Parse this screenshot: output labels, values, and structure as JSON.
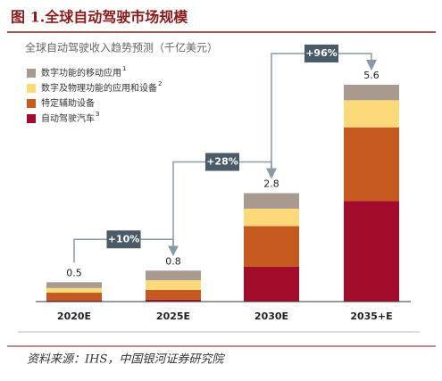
{
  "chart_data": {
    "type": "stacked_bar",
    "title": "图 1.全球自动驾驶市场规模",
    "subtitle": "全球自动驾驶收入趋势预测（千亿美元）",
    "categories": [
      "2020E",
      "2025E",
      "2030E",
      "2035+E"
    ],
    "series": [
      {
        "name": "自动驾驶汽车",
        "note": "3",
        "color": "#a30b2b",
        "values": [
          0.03,
          0.05,
          0.9,
          2.6
        ]
      },
      {
        "name": "特定辅助设备",
        "color": "#c5591f",
        "values": [
          0.2,
          0.25,
          1.05,
          1.9
        ]
      },
      {
        "name": "数字及物理功能的应用和设备",
        "note": "2",
        "color": "#fdd97a",
        "values": [
          0.12,
          0.25,
          0.45,
          0.7
        ]
      },
      {
        "name": "数字功能的移动应用",
        "note": "1",
        "color": "#a89a8e",
        "values": [
          0.15,
          0.25,
          0.4,
          0.4
        ]
      }
    ],
    "totals": [
      0.5,
      0.8,
      2.8,
      5.6
    ],
    "annotations": [
      "+10%",
      "+28%",
      "+96%"
    ],
    "source": "资料来源：IHS，中国银河证券研究院"
  }
}
